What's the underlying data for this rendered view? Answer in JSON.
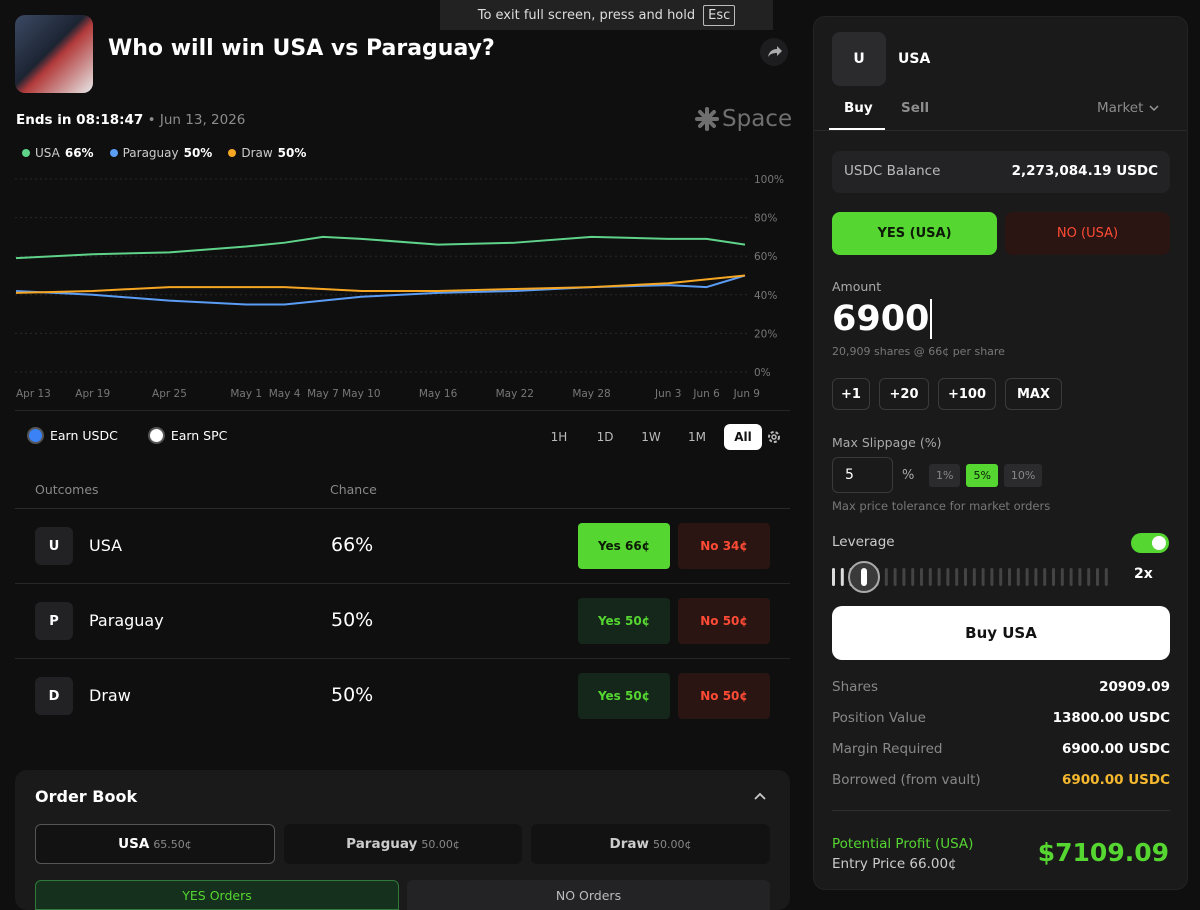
{
  "fullscreen_hint": {
    "text": "To exit full screen, press and hold",
    "key": "Esc"
  },
  "header": {
    "title": "Who will win USA vs Paraguay?",
    "ends": "Ends in 08:18:47",
    "date": "Jun 13, 2026",
    "brand": "Space"
  },
  "chart_data": {
    "type": "line",
    "x": [
      "Apr 13",
      "Apr 19",
      "Apr 25",
      "May 1",
      "May 4",
      "May 7",
      "May 10",
      "May 16",
      "May 22",
      "May 28",
      "Jun 3",
      "Jun 6",
      "Jun 9"
    ],
    "series": [
      {
        "name": "USA",
        "legend_value": "66%",
        "color": "#5fd38a",
        "values": [
          59,
          61,
          62,
          65,
          67,
          70,
          69,
          66,
          67,
          70,
          69,
          69,
          66
        ]
      },
      {
        "name": "Paraguay",
        "legend_value": "50%",
        "color": "#5b9cf5",
        "values": [
          42,
          40,
          37,
          35,
          35,
          37,
          39,
          41,
          42,
          44,
          45,
          44,
          50
        ]
      },
      {
        "name": "Draw",
        "legend_value": "50%",
        "color": "#f5a623",
        "values": [
          41,
          42,
          44,
          44,
          44,
          43,
          42,
          42,
          43,
          44,
          46,
          48,
          50
        ]
      }
    ],
    "ylim": [
      0,
      100
    ],
    "yticks": [
      {
        "value": 0,
        "label": "0%"
      },
      {
        "value": 20,
        "label": "20%"
      },
      {
        "value": 40,
        "label": "40%"
      },
      {
        "value": 60,
        "label": "60%"
      },
      {
        "value": 80,
        "label": "80%"
      },
      {
        "value": 100,
        "label": "100%"
      }
    ],
    "grid": true
  },
  "earn": [
    "Earn USDC",
    "Earn SPC"
  ],
  "ranges": [
    "1H",
    "1D",
    "1W",
    "1M",
    "All"
  ],
  "outcomes": {
    "headers": [
      "Outcomes",
      "Chance"
    ],
    "rows": [
      {
        "initial": "U",
        "name": "USA",
        "chance": "66%",
        "yes": "Yes 66¢",
        "no": "No 34¢"
      },
      {
        "initial": "P",
        "name": "Paraguay",
        "chance": "50%",
        "yes": "Yes 50¢",
        "no": "No 50¢"
      },
      {
        "initial": "D",
        "name": "Draw",
        "chance": "50%",
        "yes": "Yes 50¢",
        "no": "No 50¢"
      }
    ]
  },
  "order_book": {
    "title": "Order Book",
    "tabs": [
      {
        "name": "USA",
        "price": "65.50¢"
      },
      {
        "name": "Paraguay",
        "price": "50.00¢"
      },
      {
        "name": "Draw",
        "price": "50.00¢"
      }
    ],
    "sides": [
      "YES Orders",
      "NO Orders"
    ]
  },
  "trade": {
    "initial": "U",
    "market": "USA",
    "tabs": [
      "Buy",
      "Sell"
    ],
    "order_type": "Market",
    "balance": {
      "label": "USDC Balance",
      "value": "2,273,084.19 USDC"
    },
    "sides": [
      "YES (USA)",
      "NO (USA)"
    ],
    "amount": {
      "label": "Amount",
      "value": "6900",
      "hint": "20,909 shares @ 66¢ per share"
    },
    "increments": [
      "+1",
      "+20",
      "+100",
      "MAX"
    ],
    "slippage": {
      "label": "Max Slippage (%)",
      "value": "5",
      "unit": "%",
      "presets": [
        "1%",
        "5%",
        "10%"
      ],
      "hint": "Max price tolerance for market orders"
    },
    "leverage": {
      "label": "Leverage",
      "value": "2x"
    },
    "button": "Buy USA",
    "summary": [
      {
        "label": "Shares",
        "value": "20909.09"
      },
      {
        "label": "Position Value",
        "value": "13800.00 USDC"
      },
      {
        "label": "Margin Required",
        "value": "6900.00 USDC"
      },
      {
        "label": "Borrowed (from vault)",
        "value": "6900.00 USDC"
      }
    ],
    "profit": {
      "label": "Potential Profit (USA)",
      "entry": "Entry Price 66.00¢",
      "value": "$7109.09"
    }
  }
}
